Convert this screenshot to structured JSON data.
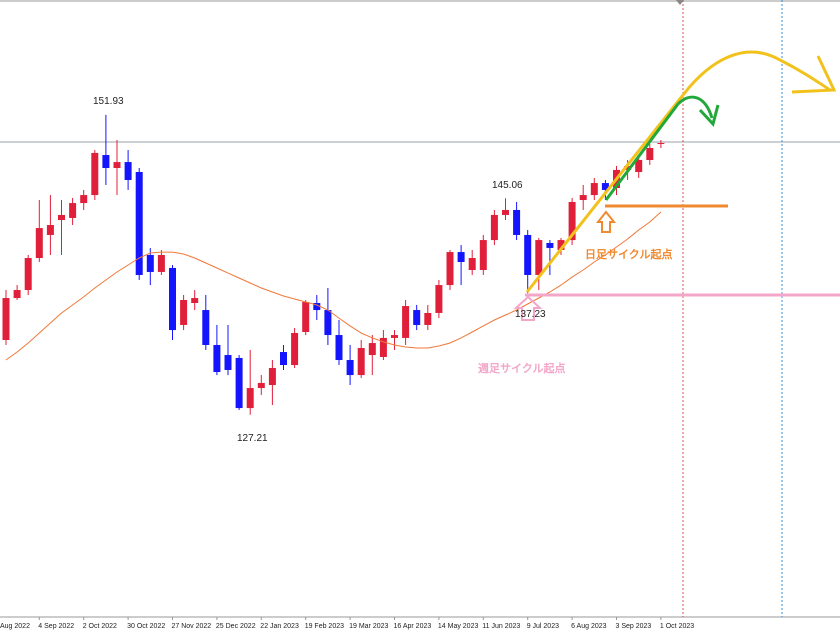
{
  "chart_data": {
    "type": "candlestick",
    "categories": [
      null,
      null,
      null,
      "4 Sep 2022",
      null,
      null,
      null,
      "2 Oct 2022",
      null,
      null,
      null,
      "30 Oct 2022",
      null,
      null,
      null,
      "27 Nov 2022",
      null,
      null,
      null,
      "25 Dec 2022",
      null,
      null,
      null,
      "22 Jan 2023",
      null,
      null,
      null,
      "19 Feb 2023",
      null,
      null,
      null,
      "19 Mar 2023",
      null,
      null,
      null,
      "16 Apr 2023",
      null,
      null,
      null,
      "14 May 2023",
      null,
      null,
      null,
      "11 Jun 2023",
      null,
      null,
      null,
      "9 Jul 2023",
      null,
      null,
      null,
      "6 Aug 2023",
      null,
      null,
      null,
      "3 Sep 2023",
      null,
      null,
      null,
      "1 Oct 2023"
    ],
    "edge_label": "Aug 2022",
    "open": [
      133.37,
      136.83,
      137.49,
      140.13,
      142.03,
      143.26,
      143.43,
      144.66,
      145.32,
      148.62,
      147.55,
      148.04,
      147.22,
      140.38,
      138.98,
      139.31,
      134.61,
      136.42,
      135.84,
      132.96,
      132.13,
      131.89,
      127.76,
      129.41,
      129.66,
      132.38,
      131.31,
      134.03,
      136.42,
      135.84,
      133.78,
      131.72,
      130.48,
      132.13,
      131.97,
      133.54,
      133.54,
      135.84,
      134.61,
      135.6,
      137.9,
      140.62,
      139.14,
      139.14,
      141.61,
      143.68,
      144.09,
      142.03,
      138.73,
      141.37,
      140.79,
      141.61,
      144.91,
      145.32,
      146.31,
      145.9,
      147.39,
      147.22,
      148.21,
      149.53
    ],
    "high": [
      137.49,
      137.9,
      140.38,
      144.91,
      145.32,
      144.91,
      145.08,
      145.74,
      149.03,
      151.93,
      149.86,
      149.03,
      147.55,
      140.95,
      140.79,
      139.55,
      137.08,
      137.49,
      137.08,
      134.61,
      134.61,
      132.13,
      132.55,
      130.48,
      131.72,
      132.96,
      134.36,
      136.67,
      137.08,
      137.66,
      135.02,
      132.96,
      133.37,
      133.78,
      134.19,
      134.19,
      136.67,
      136.26,
      136.26,
      138.32,
      140.79,
      141.2,
      140.79,
      142.03,
      144.09,
      145.06,
      144.75,
      142.44,
      141.78,
      141.61,
      141.78,
      145.08,
      146.15,
      146.73,
      146.56,
      147.71,
      148.21,
      148.62,
      149.53,
      149.86
    ],
    "low": [
      132.96,
      136.67,
      137.08,
      139.8,
      140.38,
      140.38,
      142.85,
      144.09,
      144.91,
      146.15,
      145.32,
      145.74,
      138.32,
      137.9,
      138.73,
      133.37,
      134.19,
      135.84,
      132.55,
      130.48,
      130.48,
      127.6,
      127.21,
      128.84,
      128.01,
      130.9,
      131.06,
      133.78,
      135.02,
      132.96,
      131.31,
      129.66,
      130.24,
      130.48,
      131.72,
      132.55,
      132.96,
      134.19,
      134.19,
      135.18,
      137.49,
      137.9,
      138.73,
      138.73,
      141.2,
      143.26,
      141.61,
      137.23,
      137.49,
      138.73,
      140.38,
      141.2,
      144.09,
      144.91,
      144.91,
      145.32,
      146.56,
      146.73,
      147.8,
      149.2
    ],
    "close": [
      136.83,
      137.49,
      140.13,
      142.6,
      142.85,
      143.68,
      144.66,
      145.32,
      148.79,
      147.55,
      148.04,
      146.56,
      138.73,
      138.98,
      140.38,
      134.19,
      136.67,
      136.83,
      132.96,
      130.73,
      130.9,
      127.76,
      129.41,
      129.83,
      131.06,
      131.31,
      133.95,
      136.5,
      135.84,
      133.78,
      131.72,
      130.48,
      132.71,
      133.12,
      133.54,
      133.78,
      136.17,
      134.61,
      135.6,
      137.9,
      140.62,
      139.8,
      140.13,
      141.61,
      143.68,
      144.09,
      142.03,
      138.73,
      141.61,
      140.96,
      141.61,
      144.75,
      145.32,
      146.31,
      145.74,
      147.39,
      147.71,
      148.21,
      149.2,
      149.61
    ],
    "up_color": "#e0203a",
    "down_color": "#1414ff",
    "ma": {
      "color": "#f07838",
      "values": [
        131.72,
        132.38,
        133.12,
        133.95,
        134.77,
        135.6,
        136.26,
        136.92,
        137.66,
        138.32,
        138.98,
        139.55,
        140.13,
        140.54,
        140.62,
        140.62,
        140.46,
        140.13,
        139.72,
        139.31,
        138.89,
        138.48,
        138.07,
        137.66,
        137.33,
        137.0,
        136.75,
        136.5,
        136.26,
        135.84,
        135.18,
        134.53,
        133.95,
        133.54,
        133.21,
        132.96,
        132.79,
        132.71,
        132.71,
        132.88,
        133.12,
        133.54,
        134.03,
        134.53,
        135.02,
        135.43,
        135.84,
        136.34,
        136.83,
        137.33,
        137.9,
        138.56,
        139.14,
        139.8,
        140.38,
        141.04,
        141.7,
        142.44,
        143.1,
        143.92
      ]
    },
    "ylim": [
      110.7,
      161.4
    ],
    "annotations": [
      "151.93",
      "145.06",
      "137.23",
      "127.21"
    ],
    "notes": [
      "日足サイクル起点",
      "週足サイクル起点"
    ]
  }
}
